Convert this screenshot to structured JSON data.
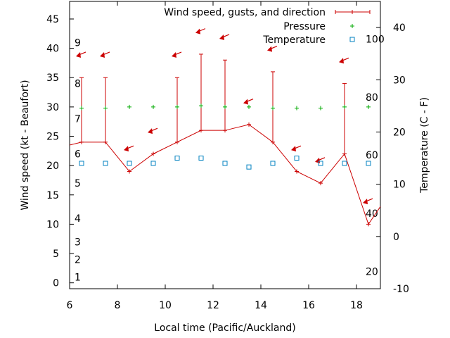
{
  "chart_data": {
    "type": "line",
    "xlabel": "Local time (Pacific/Auckland)",
    "ylabel": "Wind speed (kt - Beaufort)",
    "y2label": "Temperature (C - F)",
    "xlim": [
      6,
      19
    ],
    "ylim": [
      -1,
      48
    ],
    "y2lim": [
      -10,
      45
    ],
    "x_ticks": [
      6,
      8,
      10,
      12,
      14,
      16,
      18
    ],
    "y_ticks": [
      0,
      5,
      10,
      15,
      20,
      25,
      30,
      35,
      40,
      45
    ],
    "y2_ticks": [
      -10,
      0,
      10,
      20,
      30,
      40
    ],
    "beaufort_labels": [
      {
        "label": "1",
        "y": 1
      },
      {
        "label": "2",
        "y": 4
      },
      {
        "label": "3",
        "y": 7
      },
      {
        "label": "4",
        "y": 11
      },
      {
        "label": "5",
        "y": 17
      },
      {
        "label": "6",
        "y": 22
      },
      {
        "label": "7",
        "y": 28
      },
      {
        "label": "8",
        "y": 34
      },
      {
        "label": "9",
        "y": 41
      }
    ],
    "fahrenheit_labels": [
      {
        "label": "20",
        "t": -6.7
      },
      {
        "label": "40",
        "t": 4.4
      },
      {
        "label": "60",
        "t": 15.6
      },
      {
        "label": "80",
        "t": 26.7
      },
      {
        "label": "100",
        "t": 37.8
      }
    ],
    "legend": {
      "position": "top-right",
      "entries": [
        "Wind speed, gusts, and direction",
        "Pressure",
        "Temperature"
      ]
    },
    "series": [
      {
        "name": "Wind speed, gusts, and direction",
        "color": "#cc0000",
        "x": [
          5.5,
          6.5,
          7.5,
          8.5,
          9.5,
          10.5,
          11.5,
          12.5,
          13.5,
          14.5,
          15.5,
          16.5,
          17.5,
          18.5,
          19.5
        ],
        "y": [
          23,
          24,
          24,
          19,
          22,
          24,
          26,
          26,
          27,
          24,
          19,
          17,
          22,
          10,
          16
        ],
        "gusts": [
          null,
          35,
          35,
          null,
          null,
          35,
          39,
          38,
          null,
          36,
          null,
          null,
          34,
          null,
          null
        ],
        "direction_arrows": [
          {
            "x": 6.5,
            "y": 39
          },
          {
            "x": 7.5,
            "y": 39
          },
          {
            "x": 8.5,
            "y": 23
          },
          {
            "x": 9.5,
            "y": 26
          },
          {
            "x": 10.5,
            "y": 39
          },
          {
            "x": 11.5,
            "y": 43
          },
          {
            "x": 12.5,
            "y": 42
          },
          {
            "x": 13.5,
            "y": 31
          },
          {
            "x": 14.5,
            "y": 40
          },
          {
            "x": 15.5,
            "y": 23
          },
          {
            "x": 16.5,
            "y": 21
          },
          {
            "x": 17.5,
            "y": 38
          },
          {
            "x": 18.5,
            "y": 14
          }
        ]
      },
      {
        "name": "Pressure",
        "color": "#00aa00",
        "x": [
          6.5,
          7.5,
          8.5,
          9.5,
          10.5,
          11.5,
          12.5,
          13.5,
          14.5,
          15.5,
          16.5,
          17.5,
          18.5
        ],
        "y": [
          29.8,
          29.8,
          30,
          30,
          30,
          30.2,
          30,
          30,
          29.8,
          29.8,
          29.8,
          30,
          30
        ]
      },
      {
        "name": "Temperature",
        "color": "#0080c0",
        "x": [
          6.5,
          7.5,
          8.5,
          9.5,
          10.5,
          11.5,
          12.5,
          13.5,
          14.5,
          15.5,
          16.5,
          17.5,
          18.5
        ],
        "y": [
          14,
          14,
          14,
          14,
          15,
          15,
          14,
          13.3,
          14,
          15,
          14,
          14,
          14
        ]
      }
    ]
  }
}
